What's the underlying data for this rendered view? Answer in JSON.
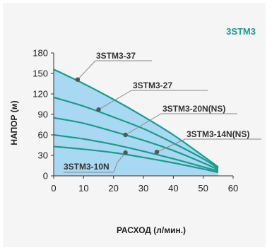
{
  "chart_data": {
    "type": "line",
    "title": "3STM3",
    "xlabel": "РАСХОД (л/мин.)",
    "ylabel": "НАПОР (м)",
    "xlim": [
      0,
      60
    ],
    "ylim": [
      0,
      180
    ],
    "x_ticks": [
      0,
      10,
      20,
      30,
      40,
      50,
      60
    ],
    "y_ticks": [
      0,
      30,
      60,
      90,
      120,
      150,
      180
    ],
    "grid": false,
    "colors": {
      "curve": "#1e9a8a",
      "fill": "#a9d8f3",
      "marker": "#555555",
      "leader": "#888888"
    },
    "series": [
      {
        "name": "3STM3-37",
        "x": [
          0,
          10,
          20,
          30,
          40,
          50,
          55
        ],
        "y": [
          156,
          135,
          112,
          87,
          60,
          29,
          13
        ],
        "marker": [
          8,
          141
        ],
        "label_anchor": "end"
      },
      {
        "name": "3STM3-27",
        "x": [
          0,
          10,
          20,
          30,
          40,
          50,
          55
        ],
        "y": [
          115,
          102,
          86,
          69,
          48,
          25,
          11
        ],
        "marker": [
          15,
          97
        ],
        "label_anchor": "start"
      },
      {
        "name": "3STM3-20N(NS)",
        "x": [
          0,
          10,
          20,
          30,
          40,
          50,
          55
        ],
        "y": [
          85,
          77,
          65,
          52,
          37,
          19,
          9
        ],
        "marker": [
          24,
          60
        ],
        "label_anchor": "start"
      },
      {
        "name": "3STM3-14N(NS)",
        "x": [
          0,
          10,
          20,
          30,
          40,
          50,
          55
        ],
        "y": [
          60,
          54,
          46,
          36,
          25,
          13,
          7
        ],
        "marker": [
          34.5,
          35
        ],
        "label_anchor": "start"
      },
      {
        "name": "3STM3-10N",
        "x": [
          0,
          10,
          20,
          30,
          40,
          50,
          55
        ],
        "y": [
          43,
          39,
          34,
          27,
          19,
          10,
          5
        ],
        "marker": [
          24,
          34
        ],
        "label_anchor": "end"
      }
    ]
  }
}
